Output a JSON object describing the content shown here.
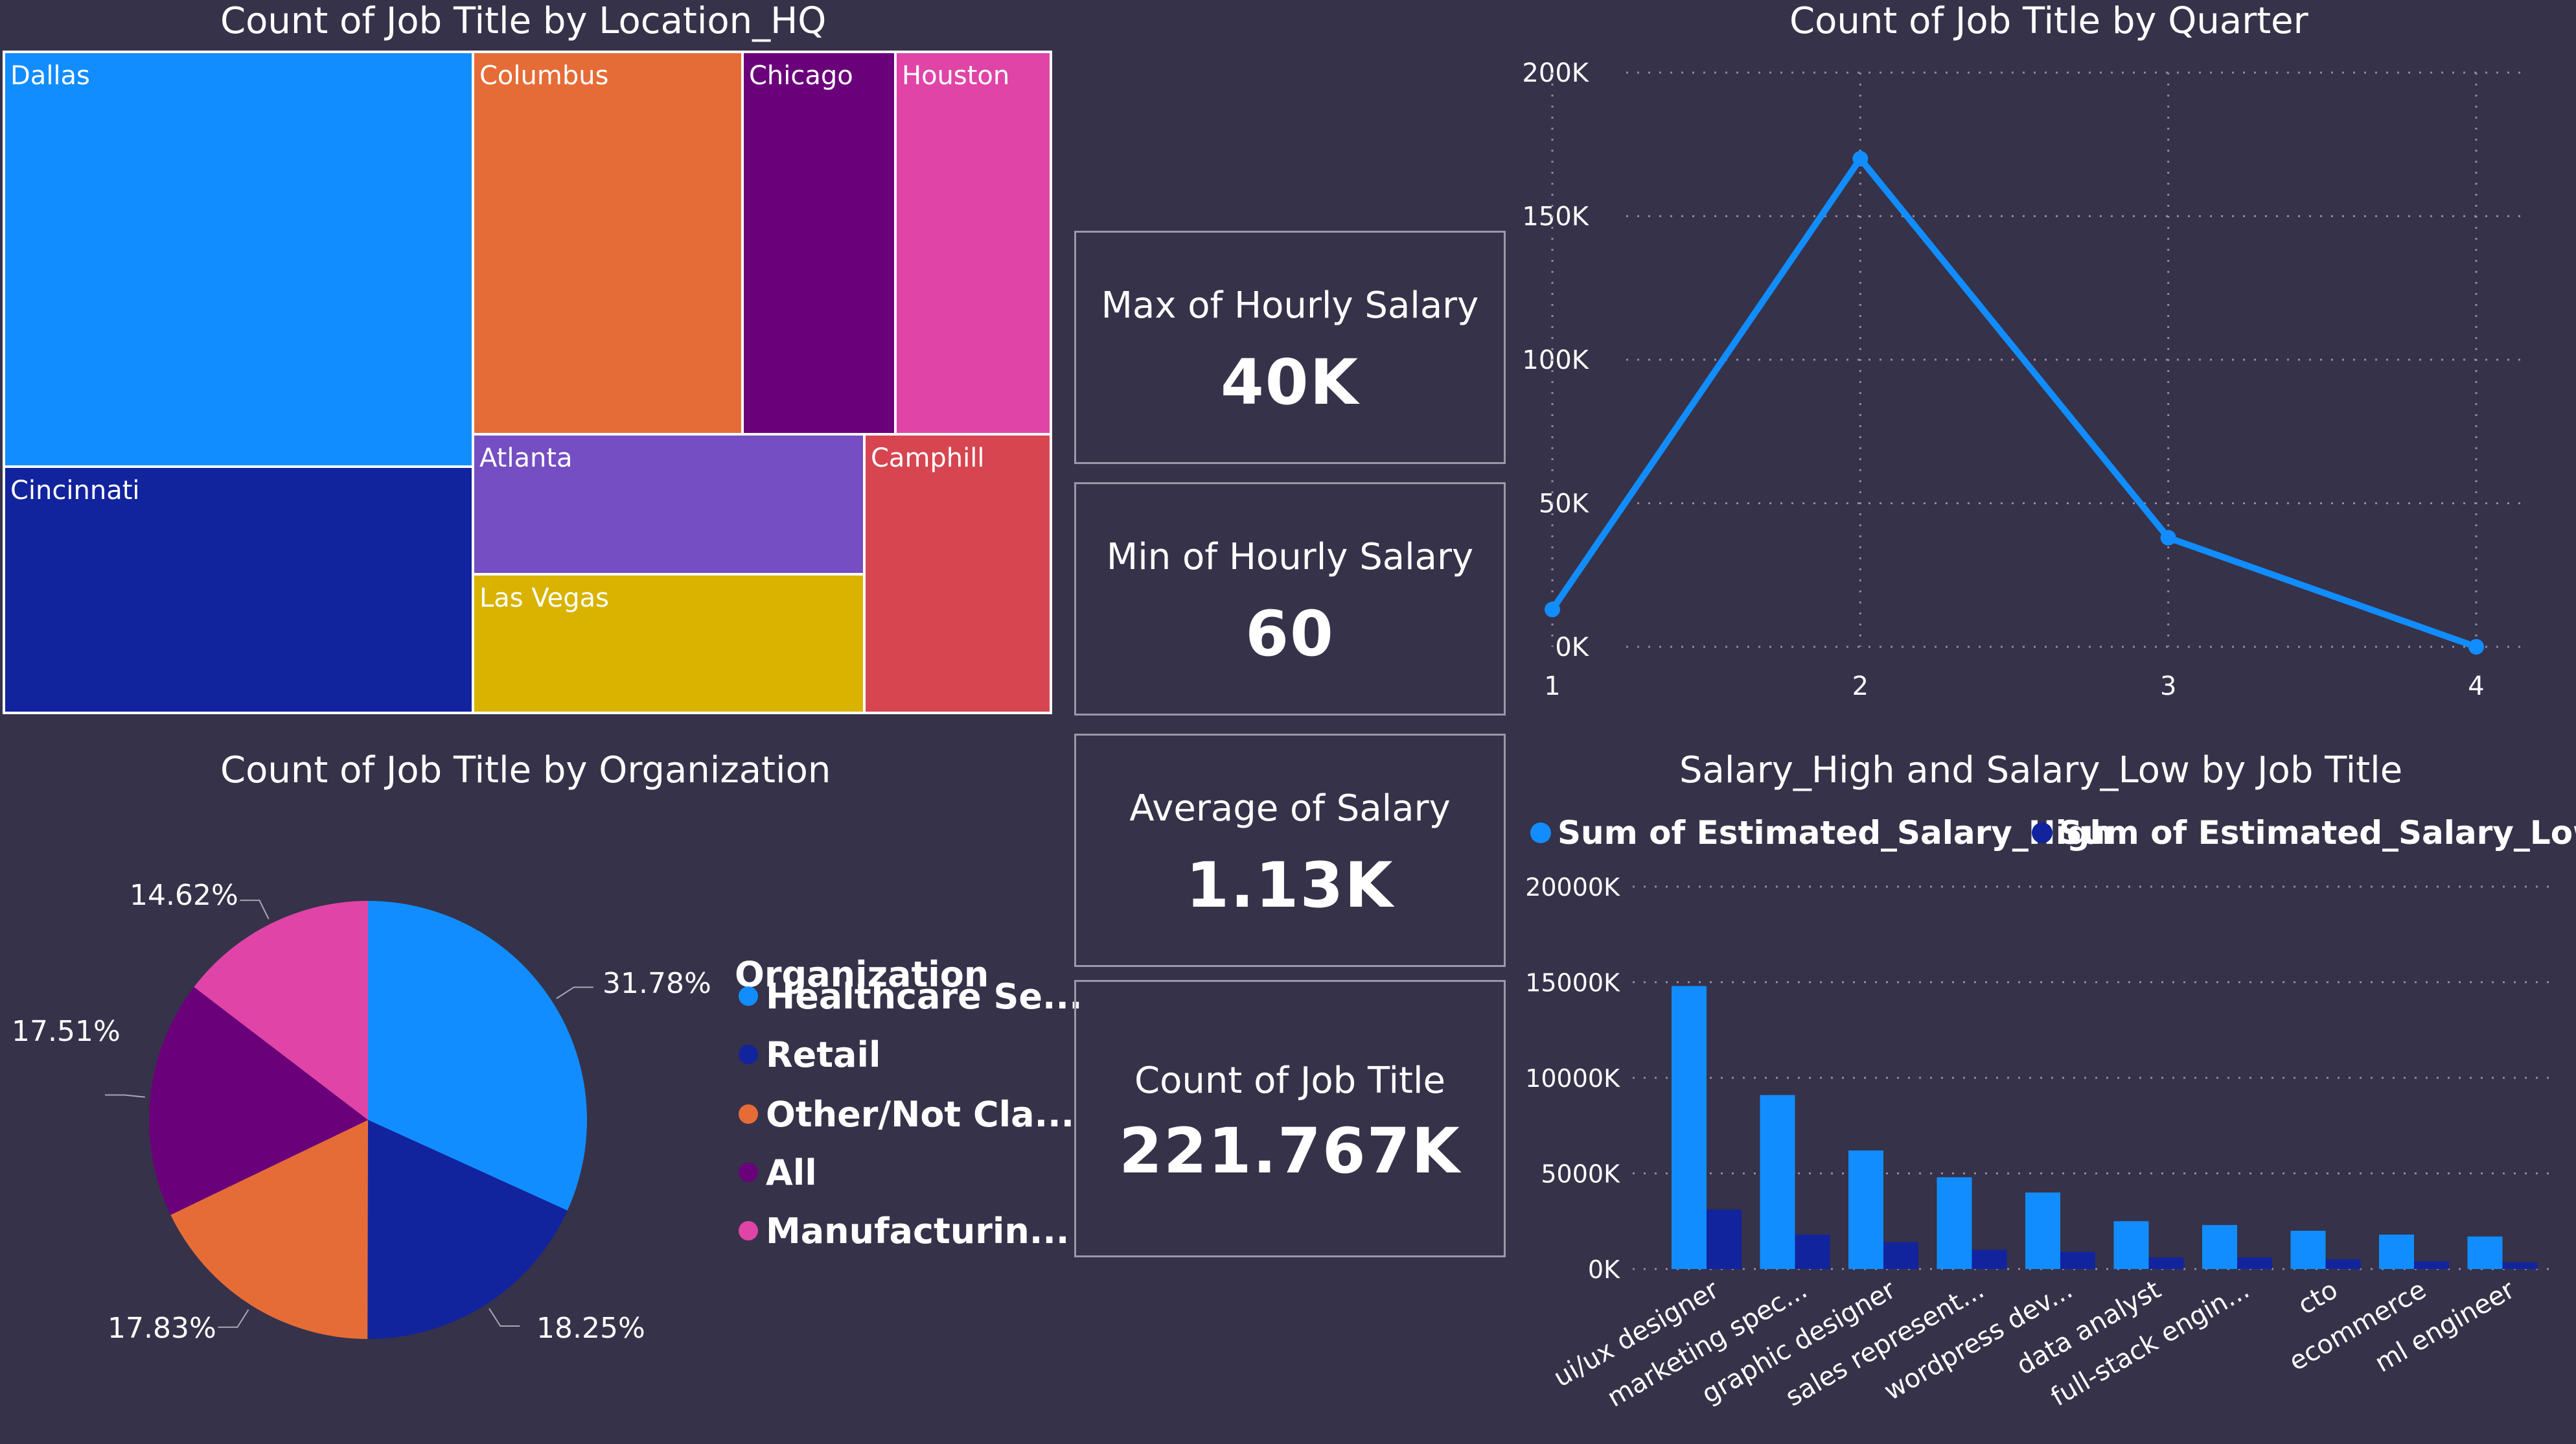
{
  "cards": [
    {
      "label": "Max of Hourly Salary",
      "value": "40K"
    },
    {
      "label": "Min of Hourly Salary",
      "value": "60"
    },
    {
      "label": "Average of Salary",
      "value": "1.13K"
    },
    {
      "label": "Count of Job Title",
      "value": "221.767K"
    }
  ],
  "chart_data": [
    {
      "type": "treemap",
      "title": "Count of Job Title by Location_HQ",
      "categories": [
        "Dallas",
        "Cincinnati",
        "Columbus",
        "Chicago",
        "Houston",
        "Atlanta",
        "Las Vegas",
        "Camphill"
      ],
      "values": [
        51400,
        33000,
        21300,
        12200,
        12200,
        10100,
        10100,
        14100
      ],
      "colors": [
        "#118dff",
        "#12239e",
        "#e66c37",
        "#6b007b",
        "#e044a7",
        "#744ec2",
        "#d9b300",
        "#d64550"
      ]
    },
    {
      "type": "line",
      "title": "Count of Job Title by Quarter",
      "x": [
        1,
        2,
        3,
        4
      ],
      "y": [
        13000,
        170000,
        38000,
        0
      ],
      "ylim": [
        0,
        200000
      ],
      "y_ticks": [
        "0K",
        "50K",
        "100K",
        "150K",
        "200K"
      ],
      "x_ticks": [
        "1",
        "2",
        "3",
        "4"
      ],
      "color": "#118dff",
      "grid": true
    },
    {
      "type": "pie",
      "title": "Count of Job Title by Organization",
      "legend_title": "Organization",
      "categories": [
        "Healthcare Se...",
        "Retail",
        "Other/Not Cla...",
        "All",
        "Manufacturin..."
      ],
      "values": [
        31.78,
        18.25,
        17.83,
        17.51,
        14.62
      ],
      "labels": [
        "31.78%",
        "18.25%",
        "17.83%",
        "17.51%",
        "14.62%"
      ],
      "colors": [
        "#118dff",
        "#12239e",
        "#e66c37",
        "#6b007b",
        "#e044a7"
      ]
    },
    {
      "type": "bar",
      "title": "Salary_High and Salary_Low by Job Title",
      "categories": [
        "ui/ux designer",
        "marketing spec...",
        "graphic designer",
        "sales represent...",
        "wordpress dev...",
        "data analyst",
        "full-stack engin...",
        "cto",
        "ecommerce",
        "ml engineer"
      ],
      "series": [
        {
          "name": "Sum of Estimated_Salary_High",
          "color": "#118dff",
          "values": [
            14800,
            9100,
            6200,
            4800,
            4000,
            2500,
            2300,
            2000,
            1800,
            1700
          ]
        },
        {
          "name": "Sum of Estimated_Salary_Low",
          "color": "#12239e",
          "values": [
            3100,
            1800,
            1400,
            1000,
            900,
            600,
            600,
            500,
            400,
            350
          ]
        }
      ],
      "ylim": [
        0,
        20000
      ],
      "y_ticks": [
        "0K",
        "5000K",
        "10000K",
        "15000K",
        "20000K"
      ],
      "grid": true
    }
  ]
}
